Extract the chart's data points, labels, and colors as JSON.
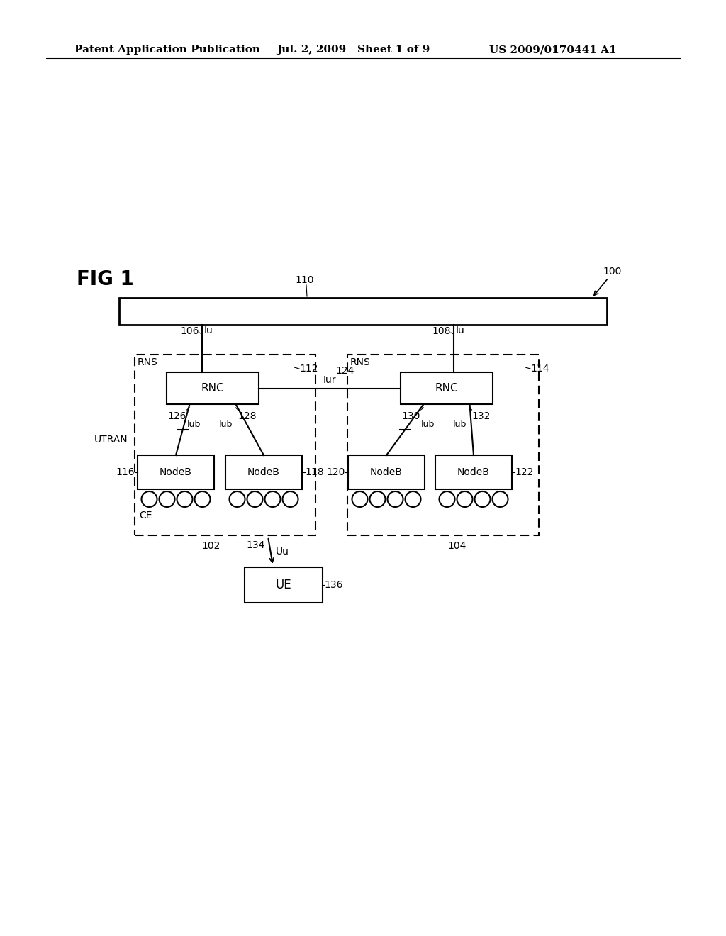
{
  "title_left": "Patent Application Publication",
  "title_mid": "Jul. 2, 2009   Sheet 1 of 9",
  "title_right": "US 2009/0170441 A1",
  "fig_label": "FIG 1",
  "background": "#ffffff",
  "cn_110": "110",
  "cn_100": "100",
  "cn_106": "106",
  "cn_108": "108",
  "cn_lu1": "Iu",
  "cn_lu2": "Iu",
  "utran_label": "UTRAN",
  "rns1_label": "RNS",
  "rns2_label": "RNS",
  "rnc1_label": "RNC",
  "rnc2_label": "RNC",
  "cn_112": "112",
  "cn_114": "114",
  "cn_iur": "Iur",
  "cn_124": "124",
  "cn_126": "126",
  "cn_128": "128",
  "cn_130": "130",
  "cn_132": "132",
  "cn_lub1": "Iub",
  "cn_lub2": "Iub",
  "cn_lub3": "Iub",
  "cn_lub4": "Iub",
  "nodeb1": "NodeB",
  "nodeb2": "NodeB",
  "nodeb3": "NodeB",
  "nodeb4": "NodeB",
  "cn_116": "116",
  "cn_118": "118",
  "cn_120": "120",
  "cn_122": "122",
  "cn_ce": "CE",
  "cn_102": "102",
  "cn_104": "104",
  "cn_134": "134",
  "cn_uu": "Uu",
  "cn_ue": "UE",
  "cn_136": "136"
}
